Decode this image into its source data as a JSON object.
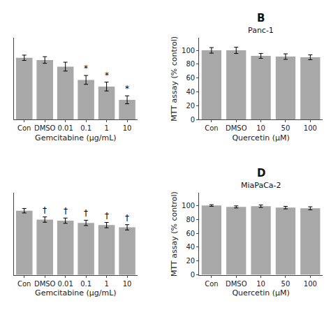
{
  "chart_data": [
    {
      "type": "bar",
      "categories": [
        "Con",
        "DMSO",
        "0.01",
        "0.1",
        "1",
        "10"
      ],
      "values": [
        103,
        102,
        99,
        93,
        90,
        84
      ],
      "errors": [
        1.2,
        1.5,
        2.0,
        2.0,
        2.0,
        1.8
      ],
      "annotations": [
        {
          "category": "0.1",
          "text": "*"
        },
        {
          "category": "1",
          "text": "*"
        },
        {
          "category": "10",
          "text": "*"
        }
      ],
      "xlabel": "Gemcitabine (μg/mL)",
      "ylim": [
        75,
        112
      ],
      "tick_labels": "x",
      "grid": false,
      "color": "#a8a8a8"
    },
    {
      "type": "bar",
      "title": "B",
      "subtitle": "Panc-1",
      "categories": [
        "Con",
        "DMSO",
        "10",
        "50",
        "100"
      ],
      "values": [
        100,
        100,
        92,
        91,
        90
      ],
      "errors": [
        4.0,
        4.5,
        3.5,
        4.0,
        3.5
      ],
      "xlabel": "Quercetin (μM)",
      "ylabel": "MTT assay (% control)",
      "ylim": [
        0,
        118
      ],
      "yticks": [
        0,
        20,
        40,
        60,
        80,
        100
      ],
      "grid": false,
      "color": "#a8a8a8"
    },
    {
      "type": "bar",
      "categories": [
        "Con",
        "DMSO",
        "0.01",
        "0.1",
        "1",
        "10"
      ],
      "values": [
        104,
        100,
        99.5,
        98.5,
        97.5,
        96.5
      ],
      "errors": [
        1.0,
        1.2,
        1.2,
        1.2,
        1.2,
        1.2
      ],
      "annotations": [
        {
          "category": "DMSO",
          "text": "†"
        },
        {
          "category": "0.01",
          "text": "†"
        },
        {
          "category": "0.1",
          "text": "†"
        },
        {
          "category": "1",
          "text": "†"
        },
        {
          "category": "10",
          "text": "†"
        }
      ],
      "xlabel": "Gemcitabine (μg/mL)",
      "ylim": [
        75,
        112
      ],
      "tick_labels": "x",
      "grid": false,
      "color": "#a8a8a8"
    },
    {
      "type": "bar",
      "title": "D",
      "subtitle": "MiaPaCa-2",
      "categories": [
        "Con",
        "DMSO",
        "10",
        "50",
        "100"
      ],
      "values": [
        100,
        98,
        99,
        97,
        96
      ],
      "errors": [
        1.2,
        1.5,
        1.8,
        1.8,
        2.2
      ],
      "xlabel": "Quercetin (μM)",
      "ylabel": "MTT assay (% control)",
      "ylim": [
        0,
        118
      ],
      "yticks": [
        0,
        20,
        40,
        60,
        80,
        100
      ],
      "grid": false,
      "color": "#a8a8a8"
    }
  ]
}
